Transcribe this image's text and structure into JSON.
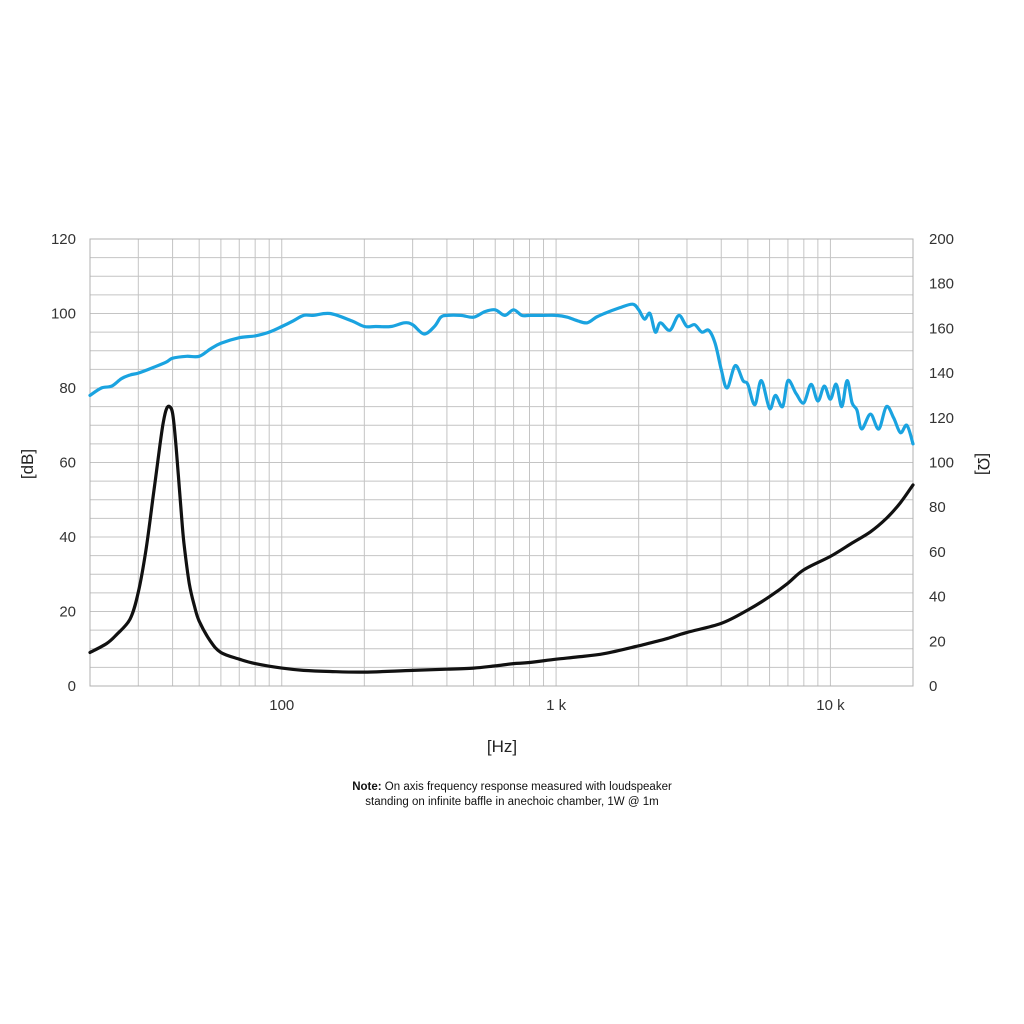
{
  "chart_data": {
    "type": "line",
    "xlabel": "[Hz]",
    "ylabel_left": "[dB]",
    "ylabel_right": "[Ω]",
    "x_scale": "log",
    "xlim": [
      20,
      20000
    ],
    "ylim_left": [
      0,
      120
    ],
    "ylim_right": [
      0,
      200
    ],
    "grid": true,
    "x_ticks": [
      {
        "value": 100,
        "label": "100"
      },
      {
        "value": 1000,
        "label": "1 k"
      },
      {
        "value": 10000,
        "label": "10 k"
      }
    ],
    "y_ticks_left": [
      "0",
      "20",
      "40",
      "60",
      "80",
      "100",
      "120"
    ],
    "y_ticks_right": [
      "0",
      "20",
      "40",
      "60",
      "80",
      "100",
      "120",
      "140",
      "160",
      "180",
      "200"
    ],
    "series": [
      {
        "axis": "left",
        "color": "#1aa3e0",
        "x": [
          20,
          22,
          24,
          26,
          28,
          30,
          34,
          38,
          40,
          45,
          50,
          55,
          60,
          70,
          80,
          90,
          100,
          110,
          120,
          130,
          150,
          180,
          200,
          220,
          250,
          280,
          300,
          330,
          360,
          380,
          400,
          450,
          500,
          550,
          600,
          650,
          700,
          750,
          800,
          900,
          1000,
          1100,
          1200,
          1300,
          1400,
          1500,
          1700,
          1900,
          2000,
          2100,
          2200,
          2300,
          2400,
          2600,
          2800,
          3000,
          3200,
          3400,
          3600,
          3800,
          4000,
          4200,
          4500,
          4800,
          5000,
          5300,
          5600,
          6000,
          6300,
          6700,
          7000,
          7500,
          8000,
          8500,
          9000,
          9500,
          10000,
          10500,
          11000,
          11500,
          12000,
          12500,
          13000,
          14000,
          15000,
          16000,
          17000,
          18000,
          19000,
          20000
        ],
        "y": [
          78,
          80,
          80.5,
          82.5,
          83.5,
          84,
          85.5,
          87,
          88,
          88.5,
          88.5,
          90.5,
          92,
          93.5,
          94,
          95,
          96.5,
          98,
          99.5,
          99.5,
          100,
          98,
          96.5,
          96.5,
          96.5,
          97.5,
          97,
          94.5,
          96.5,
          99,
          99.5,
          99.5,
          99,
          100.5,
          101,
          99.5,
          101,
          99.5,
          99.5,
          99.5,
          99.5,
          99,
          98,
          97.5,
          99,
          100,
          101.5,
          102.5,
          101,
          98.5,
          100,
          95,
          97.5,
          95.5,
          99.5,
          96.5,
          97,
          95,
          95.5,
          92,
          85,
          80,
          86,
          82,
          81,
          75.5,
          82,
          74.5,
          78,
          75,
          82,
          78.5,
          76,
          81,
          76.5,
          80.5,
          77,
          81,
          75,
          82,
          76,
          74,
          69,
          73,
          69,
          75,
          72,
          68,
          70,
          65
        ]
      },
      {
        "axis": "right",
        "color": "#111111",
        "x": [
          20,
          23,
          25,
          28,
          30,
          32,
          34,
          36,
          37,
          38,
          39,
          40,
          41,
          42,
          43,
          44,
          46,
          48,
          50,
          55,
          60,
          70,
          80,
          100,
          120,
          150,
          200,
          300,
          400,
          500,
          600,
          700,
          800,
          1000,
          1200,
          1500,
          2000,
          2500,
          3000,
          4000,
          5000,
          6000,
          7000,
          8000,
          10000,
          12000,
          14000,
          16000,
          18000,
          20000
        ],
        "y": [
          15,
          19,
          23,
          30,
          42,
          61,
          85,
          108,
          118,
          124,
          125,
          122,
          110,
          94,
          78,
          64,
          46,
          36,
          29,
          20,
          15,
          12,
          10,
          8,
          7,
          6.5,
          6.2,
          7,
          7.5,
          8,
          9,
          10,
          10.5,
          12,
          13,
          14.5,
          18,
          21,
          24,
          28,
          34,
          40,
          46,
          52,
          58,
          64,
          69,
          75,
          82,
          90
        ]
      }
    ]
  },
  "note": {
    "label": "Note:",
    "line1": "On axis frequency response measured with loudspeaker",
    "line2": "standing on infinite baffle in anechoic chamber, 1W @ 1m"
  }
}
